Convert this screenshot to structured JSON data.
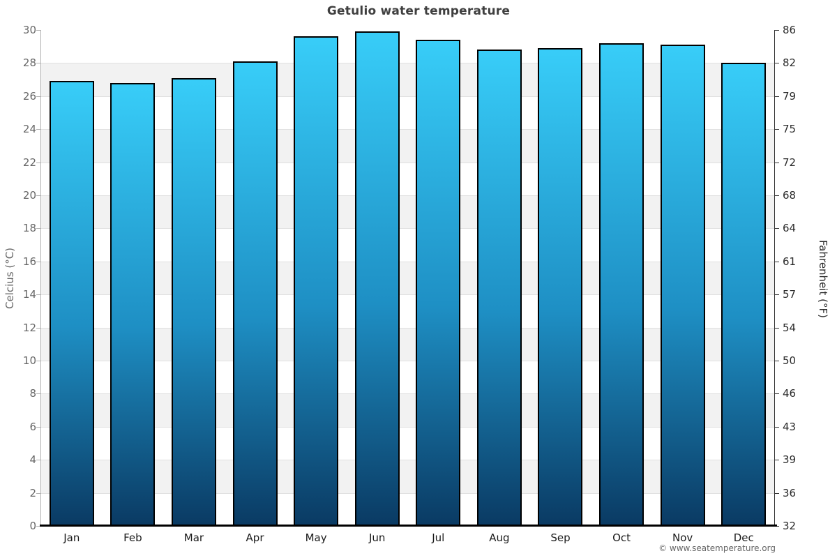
{
  "title": "Getulio water temperature",
  "footer_credit": "© www.seatemperature.org",
  "chart_data": {
    "type": "bar",
    "title": "Getulio water temperature",
    "categories": [
      "Jan",
      "Feb",
      "Mar",
      "Apr",
      "May",
      "Jun",
      "Jul",
      "Aug",
      "Sep",
      "Oct",
      "Nov",
      "Dec"
    ],
    "values": [
      26.9,
      26.8,
      27.1,
      28.1,
      29.6,
      29.9,
      29.4,
      28.8,
      28.9,
      29.2,
      29.1,
      28.0
    ],
    "unit": "°C",
    "ylabel_left": "Celcius (°C)",
    "ylabel_right": "Fahrenheit (°F)",
    "ylim": [
      0,
      30
    ],
    "yticks_celsius": [
      30,
      28,
      26,
      24,
      22,
      20,
      18,
      16,
      14,
      12,
      10,
      8,
      6,
      4,
      2,
      0
    ],
    "yticks_fahrenheit": [
      86,
      82,
      79,
      75,
      72,
      68,
      64,
      61,
      57,
      54,
      50,
      46,
      43,
      39,
      36,
      32
    ],
    "grid": "horizontal-zebra-bands-every-2C",
    "legend": "none",
    "colors": {
      "bar_top": "#38cdf8",
      "bar_mid": "#1e8fc4",
      "bar_bottom": "#0a3a63",
      "bar_border": "#000000",
      "band_gray": "#f2f2f2",
      "band_white": "#ffffff",
      "gridline": "#e0e0e0",
      "axis_left": "#b0b0b0",
      "axis_right": "#333333",
      "baseline": "#000000",
      "title_text": "#3f3f3f",
      "left_tick_text": "#666666",
      "right_tick_text": "#2b2b2b",
      "month_text": "#1a1a1a",
      "footer_text": "#666666"
    }
  }
}
